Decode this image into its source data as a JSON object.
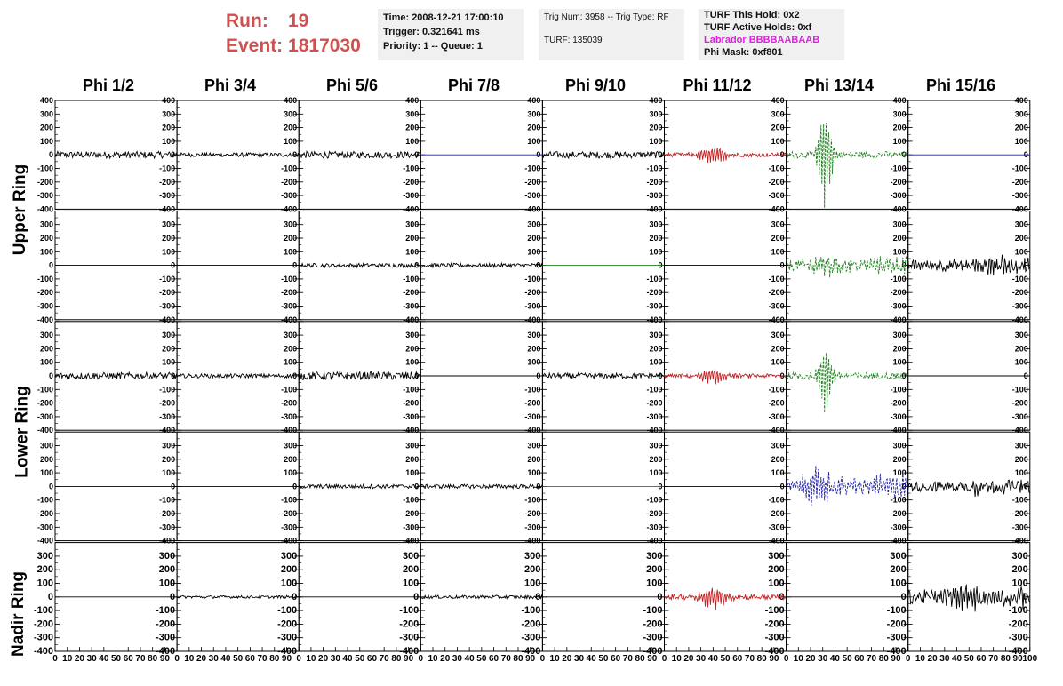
{
  "run": {
    "run_label": "Run:",
    "run_value": "19",
    "event_label": "Event:",
    "event_value": "1817030"
  },
  "info1": {
    "time": "Time: 2008-12-21 17:00:10",
    "trigger": "Trigger: 0.321641 ms",
    "priority": "Priority: 1 -- Queue: 1"
  },
  "info2": {
    "trig": "Trig Num: 3958 -- Trig Type: RF",
    "turf": "TURF: 135039"
  },
  "info3": {
    "hold": "TURF This Hold: 0x2",
    "active": "TURF Active Holds: 0xf",
    "labrador": "Labrador BBBBAABAAB",
    "phimask": "Phi Mask: 0xf801"
  },
  "colors": {
    "labrador": "#e020e0",
    "run": "#d05050",
    "red": "#c02020",
    "green": "#208020",
    "blue": "#2020a0",
    "black": "#000000"
  },
  "column_headers": [
    "Phi 1/2",
    "Phi 3/4",
    "Phi 5/6",
    "Phi 7/8",
    "Phi 9/10",
    "Phi 11/12",
    "Phi 13/14",
    "Phi 15/16"
  ],
  "ring_labels": [
    "Upper Ring",
    "Lower Ring",
    "Nadir Ring"
  ],
  "chart_data": {
    "type": "line",
    "ylim": [
      -400,
      400
    ],
    "xlim": [
      0,
      100
    ],
    "yticks": [
      "400",
      "300",
      "200",
      "100",
      "0",
      "-100",
      "-200",
      "-300",
      "-400"
    ],
    "xticks": [
      "0",
      "10",
      "20",
      "30",
      "40",
      "50",
      "60",
      "70",
      "80",
      "90",
      "100"
    ],
    "rows": [
      "upper-top",
      "upper-bottom",
      "lower-top",
      "lower-bottom",
      "nadir"
    ],
    "panels": [
      [
        {
          "color": "black",
          "amp": 25,
          "peak": 0
        },
        {
          "color": "black",
          "amp": 15,
          "peak": 0
        },
        {
          "color": "black",
          "amp": 25,
          "peak": 0
        },
        {
          "color": "blue",
          "amp": 0,
          "peak": 0
        },
        {
          "color": "black",
          "amp": 25,
          "peak": 0
        },
        {
          "color": "red",
          "amp": 15,
          "peak": 70,
          "center": 40
        },
        {
          "color": "green",
          "amp": 25,
          "peak": 400,
          "center": 32
        },
        {
          "color": "blue",
          "amp": 0,
          "peak": 0
        }
      ],
      [
        {
          "color": "black",
          "amp": 0,
          "peak": 0
        },
        {
          "color": "black",
          "amp": 0,
          "peak": 0
        },
        {
          "color": "black",
          "amp": 15,
          "peak": 0
        },
        {
          "color": "black",
          "amp": 15,
          "peak": 0
        },
        {
          "color": "green",
          "amp": 0,
          "peak": 0
        },
        {
          "color": "black",
          "amp": 0,
          "peak": 0
        },
        {
          "color": "green",
          "amp": 40,
          "peak": 80,
          "center": 32
        },
        {
          "color": "black",
          "amp": 40,
          "peak": 60,
          "center": 70
        }
      ],
      [
        {
          "color": "black",
          "amp": 25,
          "peak": 0
        },
        {
          "color": "black",
          "amp": 15,
          "peak": 0
        },
        {
          "color": "black",
          "amp": 30,
          "peak": 0
        },
        {
          "color": "black",
          "amp": 0,
          "peak": 0
        },
        {
          "color": "black",
          "amp": 20,
          "peak": 0
        },
        {
          "color": "red",
          "amp": 15,
          "peak": 60,
          "center": 40
        },
        {
          "color": "green",
          "amp": 25,
          "peak": 270,
          "center": 32
        },
        {
          "color": "black",
          "amp": 0,
          "peak": 0
        }
      ],
      [
        {
          "color": "black",
          "amp": 0,
          "peak": 0
        },
        {
          "color": "black",
          "amp": 0,
          "peak": 0
        },
        {
          "color": "black",
          "amp": 15,
          "peak": 0
        },
        {
          "color": "black",
          "amp": 15,
          "peak": 0
        },
        {
          "color": "green",
          "amp": 0,
          "peak": 0
        },
        {
          "color": "black",
          "amp": 0,
          "peak": 0
        },
        {
          "color": "blue",
          "amp": 40,
          "peak": 150,
          "center": 25
        },
        {
          "color": "black",
          "amp": 35,
          "peak": 50,
          "center": 60
        }
      ],
      [
        {
          "color": "black",
          "amp": 0,
          "peak": 0
        },
        {
          "color": "black",
          "amp": 10,
          "peak": 0
        },
        {
          "color": "black",
          "amp": 0,
          "peak": 0
        },
        {
          "color": "black",
          "amp": 12,
          "peak": 0
        },
        {
          "color": "black",
          "amp": 0,
          "peak": 0
        },
        {
          "color": "red",
          "amp": 20,
          "peak": 90,
          "center": 40
        },
        {
          "color": "black",
          "amp": 0,
          "peak": 0
        },
        {
          "color": "black",
          "amp": 50,
          "peak": 90,
          "center": 45
        }
      ]
    ]
  }
}
